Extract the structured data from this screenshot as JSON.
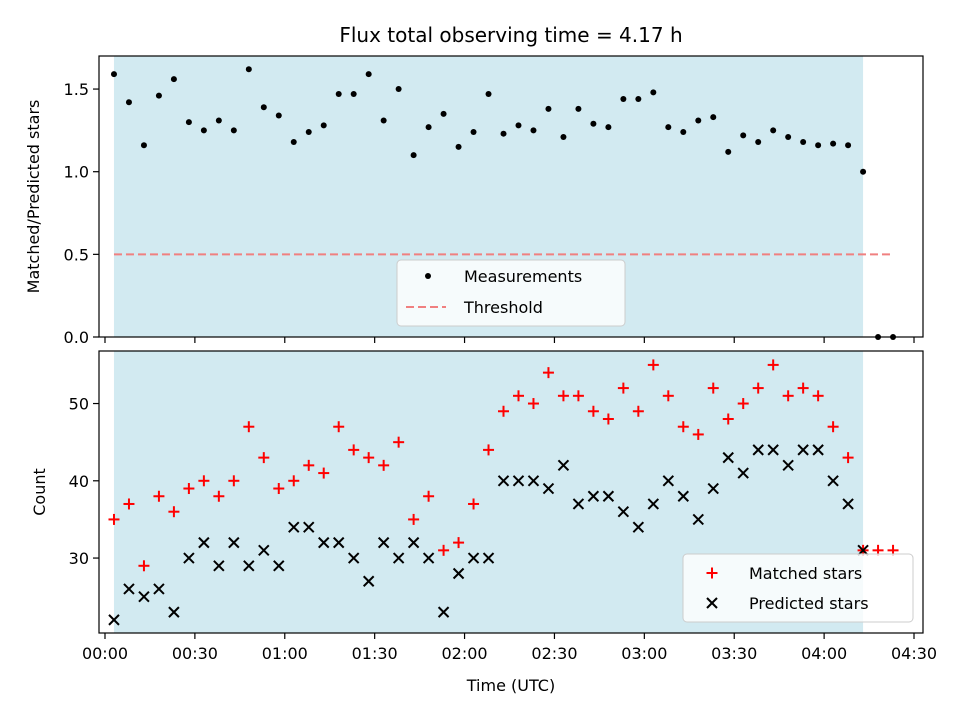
{
  "title": "Flux total observing time = 4.17 h",
  "colors": {
    "shade": "#add8e6",
    "threshold": "#f08080",
    "matched": "#ff0000",
    "predicted": "#000000",
    "measurement": "#000000"
  },
  "chart_data": [
    {
      "type": "scatter",
      "ylabel": "Matched/Predicted stars",
      "xlim": [
        "23:58",
        "04:33"
      ],
      "ylim": [
        0,
        1.7
      ],
      "yticks": [
        "0.0",
        "0.5",
        "1.0",
        "1.5"
      ],
      "shaded_span": [
        "00:03",
        "04:13"
      ],
      "legend_position": "lower-center",
      "series": [
        {
          "name": "Measurements",
          "x": [
            "00:03",
            "00:08",
            "00:13",
            "00:18",
            "00:23",
            "00:28",
            "00:33",
            "00:38",
            "00:43",
            "00:48",
            "00:53",
            "00:58",
            "01:03",
            "01:08",
            "01:13",
            "01:18",
            "01:23",
            "01:28",
            "01:33",
            "01:38",
            "01:43",
            "01:48",
            "01:53",
            "01:58",
            "02:03",
            "02:08",
            "02:13",
            "02:18",
            "02:23",
            "02:28",
            "02:33",
            "02:38",
            "02:43",
            "02:48",
            "02:53",
            "02:58",
            "03:03",
            "03:08",
            "03:13",
            "03:18",
            "03:23",
            "03:28",
            "03:33",
            "03:38",
            "03:43",
            "03:48",
            "03:53",
            "03:58",
            "04:03",
            "04:08",
            "04:13",
            "04:18",
            "04:23"
          ],
          "y": [
            1.59,
            1.42,
            1.16,
            1.46,
            1.56,
            1.3,
            1.25,
            1.31,
            1.25,
            1.62,
            1.39,
            1.34,
            1.18,
            1.24,
            1.28,
            1.47,
            1.47,
            1.59,
            1.31,
            1.5,
            1.1,
            1.27,
            1.35,
            1.15,
            1.24,
            1.47,
            1.23,
            1.28,
            1.25,
            1.38,
            1.21,
            1.38,
            1.29,
            1.27,
            1.44,
            1.44,
            1.48,
            1.27,
            1.24,
            1.31,
            1.33,
            1.12,
            1.22,
            1.18,
            1.25,
            1.21,
            1.18,
            1.16,
            1.17,
            1.16,
            1.0,
            0.0,
            0.0
          ]
        },
        {
          "name": "Threshold",
          "x": [
            "00:03",
            "04:23"
          ],
          "y": [
            0.5,
            0.5
          ]
        }
      ]
    },
    {
      "type": "scatter",
      "xlabel": "Time (UTC)",
      "ylabel": "Count",
      "xlim": [
        "23:58",
        "04:33"
      ],
      "ylim": [
        20.3,
        56.8
      ],
      "yticks": [
        "30",
        "40",
        "50"
      ],
      "xticks": [
        "00:00",
        "00:30",
        "01:00",
        "01:30",
        "02:00",
        "02:30",
        "03:00",
        "03:30",
        "04:00",
        "04:30"
      ],
      "shaded_span": [
        "00:03",
        "04:13"
      ],
      "legend_position": "lower-right",
      "x": [
        "00:03",
        "00:08",
        "00:13",
        "00:18",
        "00:23",
        "00:28",
        "00:33",
        "00:38",
        "00:43",
        "00:48",
        "00:53",
        "00:58",
        "01:03",
        "01:08",
        "01:13",
        "01:18",
        "01:23",
        "01:28",
        "01:33",
        "01:38",
        "01:43",
        "01:48",
        "01:53",
        "01:58",
        "02:03",
        "02:08",
        "02:13",
        "02:18",
        "02:23",
        "02:28",
        "02:33",
        "02:38",
        "02:43",
        "02:48",
        "02:53",
        "02:58",
        "03:03",
        "03:08",
        "03:13",
        "03:18",
        "03:23",
        "03:28",
        "03:33",
        "03:38",
        "03:43",
        "03:48",
        "03:53",
        "03:58",
        "04:03",
        "04:08",
        "04:13",
        "04:18",
        "04:23"
      ],
      "series": [
        {
          "name": "Matched stars",
          "values": [
            35,
            37,
            29,
            38,
            36,
            39,
            40,
            38,
            40,
            47,
            43,
            39,
            40,
            42,
            41,
            47,
            44,
            43,
            42,
            45,
            35,
            38,
            31,
            32,
            37,
            44,
            49,
            51,
            50,
            54,
            51,
            51,
            49,
            48,
            52,
            49,
            55,
            51,
            47,
            46,
            52,
            48,
            50,
            52,
            55,
            51,
            52,
            51,
            47,
            43,
            31,
            31,
            31
          ]
        },
        {
          "name": "Predicted stars",
          "values": [
            22,
            26,
            25,
            26,
            23,
            30,
            32,
            29,
            32,
            29,
            31,
            29,
            34,
            34,
            32,
            32,
            30,
            27,
            32,
            30,
            32,
            30,
            23,
            28,
            30,
            30,
            40,
            40,
            40,
            39,
            42,
            37,
            38,
            38,
            36,
            34,
            37,
            40,
            38,
            35,
            39,
            43,
            41,
            44,
            44,
            42,
            44,
            44,
            40,
            37,
            31,
            null,
            null
          ]
        }
      ]
    }
  ]
}
